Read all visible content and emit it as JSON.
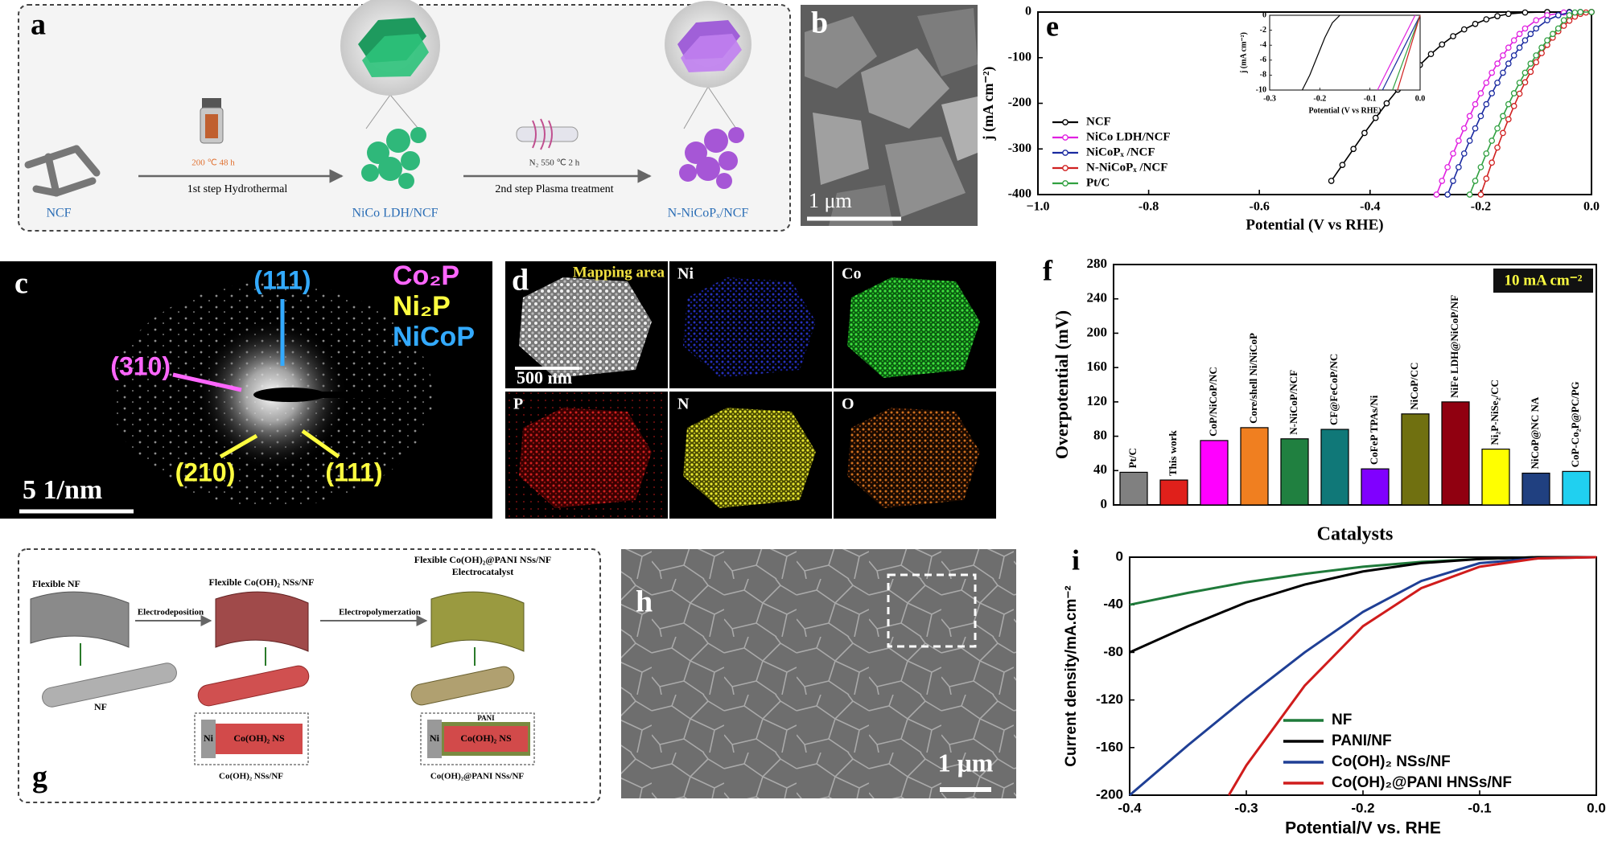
{
  "panels": {
    "a": {
      "label": "a",
      "start": "NCF",
      "step1_conditions": "200 ℃ 48 h",
      "step1": "1st step Hydrothermal",
      "intermediate": "NiCo LDH/NCF",
      "step2_conditions": "N₂ 550 ℃ 2 h",
      "step2": "2nd step Plasma treatment",
      "product": "N-NiCoPₓ/NCF"
    },
    "b": {
      "label": "b",
      "scale_bar": "1 μm"
    },
    "c": {
      "label": "c",
      "phases": [
        "Co₂P",
        "Ni₂P",
        "NiCoP"
      ],
      "planes": [
        "(111)",
        "(310)",
        "(210)",
        "(111)"
      ],
      "scale_bar": "5 1/nm"
    },
    "d": {
      "label": "d",
      "tiles": [
        "Mapping area",
        "Ni",
        "Co",
        "P",
        "N",
        "O"
      ],
      "scale_bar": "500 nm"
    },
    "g": {
      "label": "g",
      "start": "Flexible NF",
      "step1": "Electrodeposition",
      "intermediate": "Flexible Co(OH)₂ NSs/NF",
      "step2": "Electropolymerzation",
      "product": "Flexible Co(OH)₂@PANI NSs/NF",
      "product_role": "Electrocatalyst",
      "substrate": "NF",
      "inset1_core": "Ni",
      "inset1_shell": "Co(OH)₂ NS",
      "inset1_caption": "Co(OH)₂ NSs/NF",
      "inset2_coating": "PANI",
      "inset2_core": "Ni",
      "inset2_shell": "Co(OH)₂ NS",
      "inset2_caption": "Co(OH)₂@PANI NSs/NF"
    },
    "h": {
      "label": "h",
      "scale_bar": "1 μm"
    }
  },
  "chart_data": [
    {
      "type": "line",
      "label": "e",
      "xlabel": "Potential (V vs RHE)",
      "ylabel": "j (mA cm⁻²)",
      "xlim": [
        -1.0,
        0.0
      ],
      "xticks": [
        {
          "value": -1.0,
          "label": "−1.0"
        },
        -0.8,
        -0.6,
        -0.4,
        -0.2,
        {
          "value": 0.0,
          "label": "0.0"
        }
      ],
      "ylim": [
        -400,
        0
      ],
      "yticks": [
        0,
        -100,
        -200,
        -300,
        -400
      ],
      "markers": true,
      "legend": "left",
      "series": [
        {
          "name": "NCF",
          "color": "#000000",
          "x": [
            -0.47,
            -0.45,
            -0.43,
            -0.41,
            -0.39,
            -0.37,
            -0.35,
            -0.33,
            -0.31,
            -0.29,
            -0.27,
            -0.25,
            -0.23,
            -0.21,
            -0.19,
            -0.17,
            -0.15,
            -0.12,
            -0.08,
            -0.04,
            0
          ],
          "values": [
            -370,
            -335,
            -300,
            -265,
            -232,
            -200,
            -170,
            -142,
            -116,
            -92,
            -71,
            -53,
            -38,
            -26,
            -16,
            -9,
            -4,
            -1,
            0,
            0,
            0
          ]
        },
        {
          "name": "NiCo LDH/NCF",
          "color": "#e020e0",
          "x": [
            -0.28,
            -0.27,
            -0.26,
            -0.25,
            -0.24,
            -0.23,
            -0.22,
            -0.21,
            -0.2,
            -0.19,
            -0.18,
            -0.17,
            -0.16,
            -0.15,
            -0.14,
            -0.13,
            -0.12,
            -0.1,
            -0.08,
            -0.05,
            -0.02,
            0
          ],
          "values": [
            -400,
            -370,
            -340,
            -310,
            -282,
            -255,
            -228,
            -202,
            -178,
            -155,
            -133,
            -113,
            -95,
            -78,
            -62,
            -48,
            -36,
            -18,
            -7,
            -1,
            0,
            0
          ]
        },
        {
          "name": "NiCoPₓ /NCF",
          "color": "#1a2aa0",
          "x": [
            -0.26,
            -0.25,
            -0.24,
            -0.23,
            -0.22,
            -0.21,
            -0.2,
            -0.19,
            -0.18,
            -0.17,
            -0.16,
            -0.15,
            -0.14,
            -0.13,
            -0.12,
            -0.11,
            -0.1,
            -0.08,
            -0.06,
            -0.04,
            -0.02,
            0
          ],
          "values": [
            -400,
            -370,
            -340,
            -310,
            -282,
            -255,
            -228,
            -202,
            -178,
            -155,
            -133,
            -113,
            -95,
            -78,
            -62,
            -48,
            -36,
            -18,
            -7,
            -1,
            0,
            0
          ]
        },
        {
          "name": "N-NiCoPₓ /NCF",
          "color": "#d02020",
          "x": [
            -0.2,
            -0.19,
            -0.18,
            -0.17,
            -0.16,
            -0.15,
            -0.14,
            -0.13,
            -0.12,
            -0.11,
            -0.1,
            -0.09,
            -0.08,
            -0.07,
            -0.06,
            -0.05,
            -0.04,
            -0.03,
            -0.02,
            -0.01,
            0
          ],
          "values": [
            -400,
            -365,
            -330,
            -297,
            -265,
            -235,
            -206,
            -179,
            -154,
            -131,
            -110,
            -90,
            -72,
            -56,
            -42,
            -30,
            -19,
            -10,
            -4,
            -1,
            0
          ]
        },
        {
          "name": "Pt/C",
          "color": "#30a040",
          "x": [
            -0.22,
            -0.21,
            -0.2,
            -0.19,
            -0.18,
            -0.17,
            -0.16,
            -0.15,
            -0.14,
            -0.13,
            -0.12,
            -0.11,
            -0.1,
            -0.09,
            -0.08,
            -0.07,
            -0.06,
            -0.05,
            -0.04,
            -0.03,
            -0.02,
            0
          ],
          "values": [
            -400,
            -370,
            -340,
            -310,
            -282,
            -255,
            -228,
            -202,
            -178,
            -155,
            -133,
            -113,
            -95,
            -78,
            -62,
            -48,
            -36,
            -18,
            -7,
            -1,
            0,
            0
          ]
        }
      ]
    },
    {
      "type": "line",
      "xlabel": "Potential (V vs RHE)",
      "ylabel": "j (mA cm⁻²)",
      "xlim": [
        -0.3,
        0.0
      ],
      "xticks": [
        -0.3,
        -0.2,
        -0.1,
        {
          "value": 0.0,
          "label": "0.0"
        }
      ],
      "ylim": [
        -10,
        0
      ],
      "yticks": [
        0,
        -2,
        -4,
        -6,
        -8,
        -10
      ],
      "markers": false,
      "series": [
        {
          "color": "#000000",
          "x": [
            -0.235,
            -0.22,
            -0.205,
            -0.19,
            -0.175,
            -0.16
          ],
          "values": [
            -10,
            -8,
            -5.5,
            -3,
            -1,
            0
          ]
        },
        {
          "color": "#e020e0",
          "x": [
            -0.085,
            -0.07,
            -0.055,
            -0.04,
            -0.025,
            -0.01
          ],
          "values": [
            -10,
            -8,
            -6,
            -4,
            -2,
            0
          ]
        },
        {
          "color": "#1a2aa0",
          "x": [
            -0.075,
            -0.06,
            -0.045,
            -0.03,
            -0.015,
            0
          ],
          "values": [
            -10,
            -8,
            -6,
            -4,
            -2,
            0
          ]
        },
        {
          "color": "#30a040",
          "x": [
            -0.055,
            -0.044,
            -0.033,
            -0.022,
            -0.011,
            0
          ],
          "values": [
            -10,
            -8,
            -6,
            -4,
            -2,
            0
          ]
        },
        {
          "color": "#d02020",
          "x": [
            -0.045,
            -0.036,
            -0.027,
            -0.018,
            -0.009,
            0
          ],
          "values": [
            -10,
            -8,
            -6,
            -4,
            -2,
            0
          ]
        }
      ]
    },
    {
      "type": "bar",
      "label": "f",
      "xlabel": "Catalysts",
      "ylabel": "Overpotential (mV)",
      "annotation": "10 mA cm⁻²",
      "categories": [
        "Pt/C",
        "This work",
        "CoP/NiCoP/NC",
        "Core/shell Ni/NiCoP",
        "N-NiCoP/NCF",
        "CF@FeCoP/NC",
        "CoFeP TPAs/Ni",
        "NiCoP/CC",
        "NiFe LDH@NiCoP/NF",
        "Ni₂P-NiSe₂/CC",
        "NiCoP@NC NA",
        "CoP-Co₂P@PC/PG"
      ],
      "values": [
        38,
        29,
        75,
        90,
        77,
        88,
        42,
        106,
        120,
        65,
        37,
        39
      ],
      "colors": [
        "#808080",
        "#e0201b",
        "#ff00ff",
        "#f07f20",
        "#208040",
        "#107878",
        "#8000ff",
        "#707010",
        "#900010",
        "#ffff00",
        "#204080",
        "#20d0f0"
      ],
      "ylim": [
        0,
        280
      ],
      "yticks": [
        0,
        40,
        80,
        120,
        160,
        200,
        240,
        280
      ]
    },
    {
      "type": "line",
      "label": "i",
      "xlabel": "Potential/V vs. RHE",
      "ylabel": "Current density/mA.cm⁻²",
      "xlim": [
        -0.4,
        0.0
      ],
      "xticks": [
        -0.4,
        -0.3,
        -0.2,
        -0.1,
        {
          "value": 0.0,
          "label": "0.0"
        }
      ],
      "ylim": [
        -200,
        0
      ],
      "yticks": [
        0,
        -40,
        -80,
        -120,
        -160,
        -200
      ],
      "markers": false,
      "legend": "lower right",
      "series": [
        {
          "name": "NF",
          "color": "#1f7a3a",
          "x": [
            -0.4,
            -0.35,
            -0.3,
            -0.25,
            -0.2,
            -0.15,
            -0.1,
            -0.05,
            0
          ],
          "values": [
            -40,
            -30,
            -21,
            -14,
            -8,
            -4,
            -1.5,
            0,
            0
          ]
        },
        {
          "name": "PANI/NF",
          "color": "#000000",
          "x": [
            -0.4,
            -0.35,
            -0.3,
            -0.25,
            -0.2,
            -0.15,
            -0.1,
            -0.05,
            0
          ],
          "values": [
            -80,
            -58,
            -38,
            -23,
            -12,
            -5,
            -1.5,
            0,
            0
          ]
        },
        {
          "name": "Co(OH)₂ NSs/NF",
          "color": "#1f3f95",
          "x": [
            -0.4,
            -0.35,
            -0.3,
            -0.25,
            -0.2,
            -0.15,
            -0.1,
            -0.05,
            0
          ],
          "values": [
            -200,
            -158,
            -118,
            -80,
            -46,
            -20,
            -5,
            -1,
            0
          ]
        },
        {
          "name": "Co(OH)₂@PANI HNSs/NF",
          "color": "#d01c1c",
          "x": [
            -0.315,
            -0.3,
            -0.25,
            -0.2,
            -0.15,
            -0.1,
            -0.05,
            0
          ],
          "values": [
            -200,
            -175,
            -108,
            -58,
            -26,
            -8,
            -1,
            0
          ]
        }
      ]
    }
  ]
}
